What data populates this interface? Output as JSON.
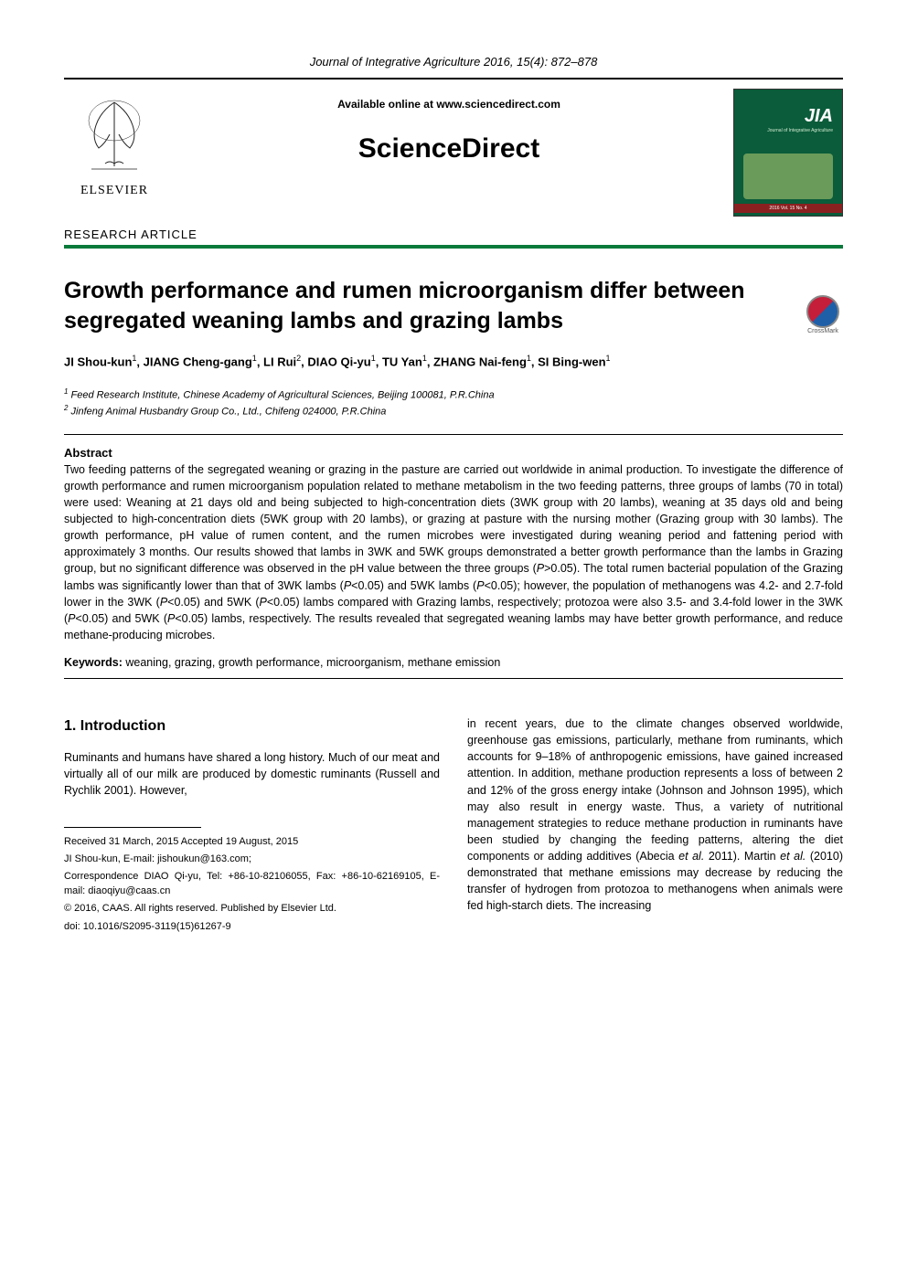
{
  "journal_citation": "Journal of Integrative Agriculture  2016, 15(4): 872–878",
  "header": {
    "available_online": "Available online at www.sciencedirect.com",
    "sciencedirect": "ScienceDirect",
    "elsevier_label": "ELSEVIER",
    "cover": {
      "jia": "JIA",
      "subtitle": "Journal of Integrative Agriculture",
      "footer": "2016  Vol. 15  No. 4"
    }
  },
  "article_type": "RESEARCH  ARTICLE",
  "title": "Growth performance and rumen microorganism differ between segregated weaning lambs and grazing lambs",
  "crossmark_label": "CrossMark",
  "authors_html": "JI Shou-kun<sup>1</sup>, JIANG Cheng-gang<sup>1</sup>, LI Rui<sup>2</sup>, DIAO Qi-yu<sup>1</sup>, TU Yan<sup>1</sup>, ZHANG Nai-feng<sup>1</sup>, SI Bing-wen<sup>1</sup>",
  "affiliations": [
    "<sup>1</sup> Feed Research Institute, Chinese Academy of Agricultural Sciences, Beijing 100081, P.R.China",
    "<sup>2</sup> Jinfeng Animal Husbandry Group Co., Ltd., Chifeng 024000, P.R.China"
  ],
  "abstract_heading": "Abstract",
  "abstract_text": "Two feeding patterns of the segregated weaning or grazing in the pasture are carried out worldwide in animal production. To investigate the difference of growth performance and rumen microorganism population related to methane metabolism in the two feeding patterns, three groups of lambs (70 in total) were used: Weaning at 21 days old and being subjected to high-concentration diets (3WK group with 20 lambs), weaning at 35 days old and being subjected to high-concentration diets (5WK group with 20 lambs), or grazing at pasture with the nursing mother (Grazing group with 30 lambs). The growth performance, pH value of rumen content, and the rumen microbes were investigated during weaning period and fattening period with approximately 3 months. Our results showed that lambs in 3WK and 5WK groups demonstrated a better growth performance than the lambs in Grazing group, but no significant difference was observed in the pH value between the three groups (P>0.05). The total rumen bacterial population of the Grazing lambs was significantly lower than that of 3WK lambs (P<0.05) and 5WK lambs (P<0.05); however, the population of methanogens was 4.2- and 2.7-fold lower in the 3WK (P<0.05) and 5WK (P<0.05) lambs compared with Grazing lambs, respectively; protozoa were also 3.5- and 3.4-fold lower in the 3WK (P<0.05) and 5WK (P<0.05) lambs, respectively. The results revealed that segregated weaning lambs may have better growth performance, and reduce methane-producing microbes.",
  "keywords_label": "Keywords:",
  "keywords_text": " weaning, grazing, growth performance, microorganism, methane emission",
  "introduction": {
    "heading": "1. Introduction",
    "left_para": "Ruminants and humans have shared a long history. Much of our meat and virtually all of our milk are produced by domestic ruminants (Russell and Rychlik 2001). However,",
    "right_para": "in recent years, due to the climate changes observed worldwide, greenhouse gas emissions, particularly, methane from ruminants, which accounts for 9–18% of anthropogenic emissions, have gained increased attention. In addition, methane production represents a loss of between 2 and 12% of the gross energy intake (Johnson and Johnson 1995), which may also result in energy waste. Thus, a variety of nutritional management strategies to reduce methane production in ruminants have been studied by changing the feeding patterns, altering the diet components or adding additives (Abecia et al. 2011). Martin et al. (2010) demonstrated that methane emissions may decrease by reducing the transfer of hydrogen from protozoa to methanogens when animals were fed high-starch diets. The increasing"
  },
  "footnotes": {
    "received": "Received  31 March, 2015    Accepted  19 August, 2015",
    "author_email": "JI Shou-kun, E-mail: jishoukun@163.com;",
    "correspondence": "Correspondence DIAO Qi-yu, Tel: +86-10-82106055, Fax: +86-10-62169105, E-mail: diaoqiyu@caas.cn",
    "copyright": "© 2016, CAAS. All rights reserved. Published by Elsevier Ltd.",
    "doi": "doi: 10.1016/S2095-3119(15)61267-9"
  },
  "colors": {
    "green_rule": "#0a7a3a",
    "cover_bg": "#0a5c3a",
    "cover_footer": "#8b2020"
  }
}
